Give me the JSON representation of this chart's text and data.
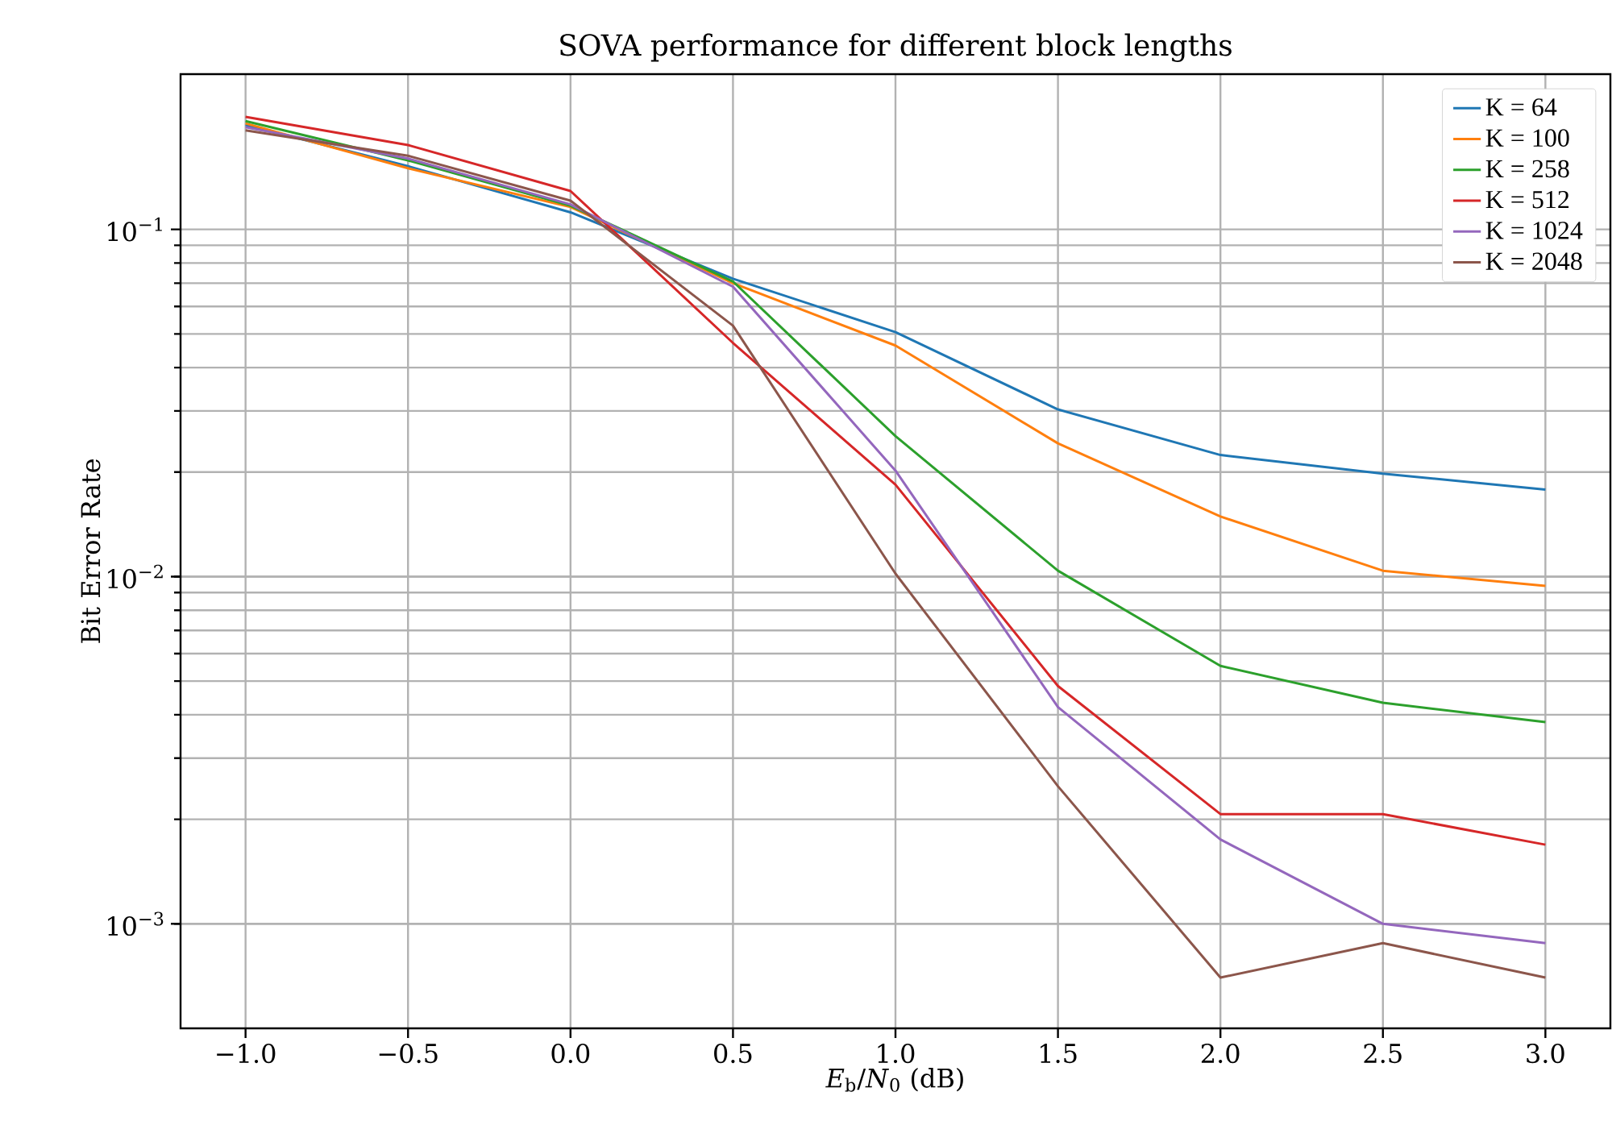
{
  "chart_data": {
    "type": "line",
    "title": "SOVA performance for different block lengths",
    "xlabel": "*E*$_{b}$/*N*$_{0}$ (dB)",
    "ylabel": "Bit Error Rate",
    "x": [
      -1.0,
      -0.5,
      0.0,
      0.5,
      1.0,
      1.5,
      2.0,
      2.5,
      3.0
    ],
    "series": [
      {
        "name": "K = 64",
        "color": "#1f77b4",
        "values": [
          0.2,
          0.152,
          0.112,
          0.0721,
          0.0506,
          0.0303,
          0.0224,
          0.0198,
          0.0178
        ]
      },
      {
        "name": "K = 100",
        "color": "#ff7f0e",
        "values": [
          0.202,
          0.15,
          0.116,
          0.07,
          0.0463,
          0.0242,
          0.0149,
          0.0104,
          0.0094
        ]
      },
      {
        "name": "K = 258",
        "color": "#2ca02c",
        "values": [
          0.205,
          0.158,
          0.117,
          0.0708,
          0.0254,
          0.0104,
          0.00553,
          0.00433,
          0.00381
        ]
      },
      {
        "name": "K = 512",
        "color": "#d62728",
        "values": [
          0.211,
          0.175,
          0.129,
          0.0471,
          0.0184,
          0.00484,
          0.00207,
          0.00207,
          0.00169
        ]
      },
      {
        "name": "K = 1024",
        "color": "#9467bd",
        "values": [
          0.197,
          0.16,
          0.118,
          0.0684,
          0.0202,
          0.00421,
          0.00175,
          0.001,
          0.00088
        ]
      },
      {
        "name": "K = 2048",
        "color": "#8c564b",
        "values": [
          0.193,
          0.163,
          0.121,
          0.0528,
          0.0102,
          0.00249,
          0.0007,
          0.00088,
          0.0007
        ]
      }
    ],
    "log": "y",
    "grid": true,
    "legend": "top right",
    "marker": "none",
    "line_style": "solid",
    "xlim": [
      -1.2,
      3.2
    ],
    "ylim": [
      0.0005,
      0.28
    ],
    "xticks": [
      {
        "value": -1.0,
        "label": "−1.0"
      },
      {
        "value": -0.5,
        "label": "−0.5"
      },
      {
        "value": 0.0,
        "label": "0.0"
      },
      {
        "value": 0.5,
        "label": "0.5"
      },
      {
        "value": 1.0,
        "label": "1.0"
      },
      {
        "value": 1.5,
        "label": "1.5"
      },
      {
        "value": 2.0,
        "label": "2.0"
      },
      {
        "value": 2.5,
        "label": "2.5"
      },
      {
        "value": 3.0,
        "label": "3.0"
      }
    ],
    "yticks": [
      {
        "value": 0.001,
        "label": "10$^{−3}$"
      },
      {
        "value": 0.01,
        "label": "10$^{−2}$"
      },
      {
        "value": 0.1,
        "label": "10$^{−1}$"
      }
    ]
  }
}
